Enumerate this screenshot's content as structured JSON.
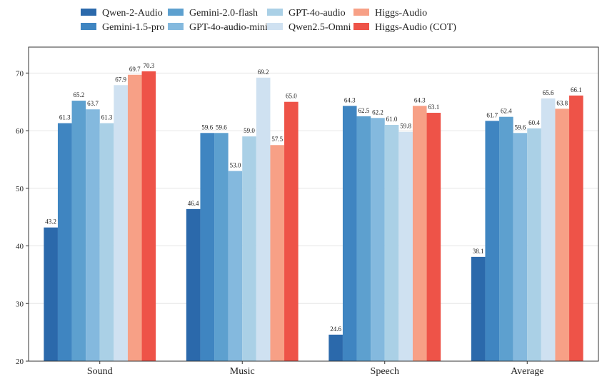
{
  "chart_data": {
    "type": "bar",
    "categories": [
      "Sound",
      "Music",
      "Speech",
      "Average"
    ],
    "series": [
      {
        "name": "Qwen-2-Audio",
        "color": "#2b69ab",
        "values": [
          43.2,
          46.4,
          24.6,
          38.1
        ]
      },
      {
        "name": "Gemini-1.5-pro",
        "color": "#3f85c1",
        "values": [
          61.3,
          59.6,
          64.3,
          61.7
        ]
      },
      {
        "name": "Gemini-2.0-flash",
        "color": "#5da0cf",
        "values": [
          65.2,
          59.6,
          62.5,
          62.4
        ]
      },
      {
        "name": "GPT-4o-audio-mini",
        "color": "#84b9de",
        "values": [
          63.7,
          53.0,
          62.2,
          59.6
        ]
      },
      {
        "name": "GPT-4o-audio",
        "color": "#aad0e6",
        "values": [
          61.3,
          59.0,
          61.0,
          60.4
        ]
      },
      {
        "name": "Qwen2.5-Omni",
        "color": "#cfe1f1",
        "values": [
          67.9,
          69.2,
          59.8,
          65.6
        ]
      },
      {
        "name": "Higgs-Audio",
        "color": "#f7a086",
        "values": [
          69.7,
          57.5,
          64.3,
          63.8
        ]
      },
      {
        "name": "Higgs-Audio (COT)",
        "color": "#ee5348",
        "values": [
          70.3,
          65.0,
          63.1,
          66.1
        ]
      }
    ],
    "ylim": [
      20,
      74.5
    ],
    "yticks": [
      20,
      30,
      40,
      50,
      60,
      70
    ],
    "grid": true,
    "legend": "top",
    "title": "",
    "xlabel": "",
    "ylabel": ""
  }
}
